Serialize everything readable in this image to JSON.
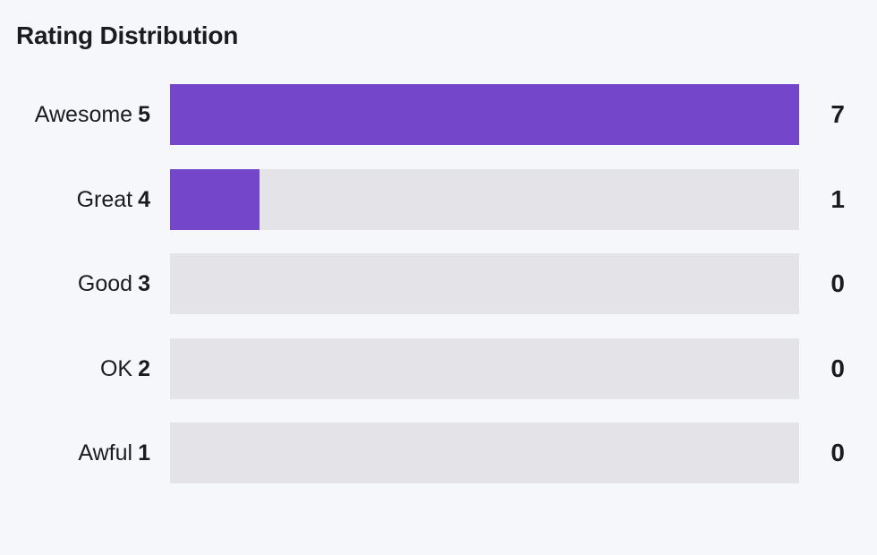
{
  "title": "Rating Distribution",
  "colors": {
    "bar_fill": "#7446c9",
    "bar_track": "#e4e3e8"
  },
  "rows": [
    {
      "label": "Awesome",
      "stars": "5",
      "count": "7",
      "value": 7
    },
    {
      "label": "Great",
      "stars": "4",
      "count": "1",
      "value": 1
    },
    {
      "label": "Good",
      "stars": "3",
      "count": "0",
      "value": 0
    },
    {
      "label": "OK",
      "stars": "2",
      "count": "0",
      "value": 0
    },
    {
      "label": "Awful",
      "stars": "1",
      "count": "0",
      "value": 0
    }
  ],
  "max_value": 7
}
